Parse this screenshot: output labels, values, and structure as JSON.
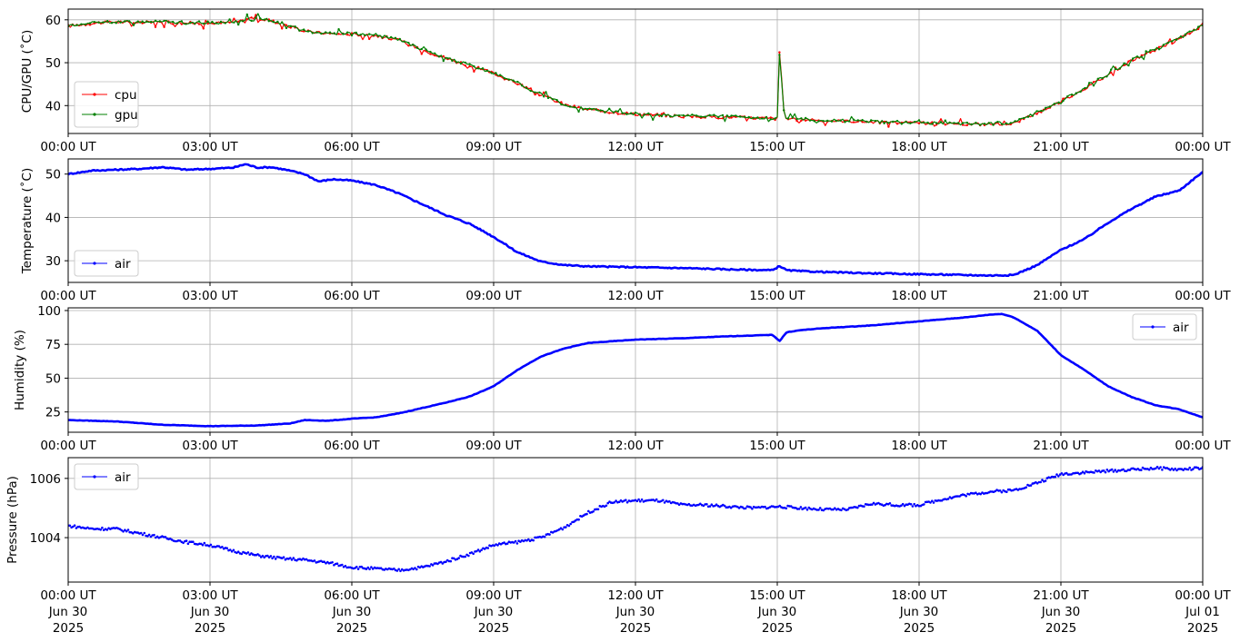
{
  "figure": {
    "x_tick_labels": [
      "00:00 UT",
      "03:00 UT",
      "06:00 UT",
      "09:00 UT",
      "12:00 UT",
      "15:00 UT",
      "18:00 UT",
      "21:00 UT",
      "00:00 UT"
    ],
    "bottom_date_lines": [
      [
        "Jun 30",
        "2025"
      ],
      [
        "Jun 30",
        "2025"
      ],
      [
        "Jun 30",
        "2025"
      ],
      [
        "Jun 30",
        "2025"
      ],
      [
        "Jun 30",
        "2025"
      ],
      [
        "Jun 30",
        "2025"
      ],
      [
        "Jun 30",
        "2025"
      ],
      [
        "Jun 30",
        "2025"
      ],
      [
        "Jul 01",
        "2025"
      ]
    ]
  },
  "chart_data": [
    {
      "type": "line",
      "ylabel": "CPU/GPU (˚C)",
      "xlim": [
        "2025-06-30 00:00",
        "2025-07-01 00:00"
      ],
      "ylim": [
        33.5,
        62.5
      ],
      "yticks": [
        40,
        50,
        60
      ],
      "grid": true,
      "legend": "lower-left",
      "x_hours": [
        0,
        0.5,
        1,
        1.5,
        2,
        2.5,
        3,
        3.5,
        3.9,
        4.2,
        4.6,
        5,
        5.5,
        6,
        6.5,
        7,
        7.5,
        8,
        8.5,
        9,
        9.5,
        10,
        10.5,
        11,
        12,
        13,
        14,
        14.9,
        15.0,
        15.05,
        15.1,
        15.15,
        15.25,
        15.5,
        16,
        16.5,
        17,
        17.5,
        18,
        18.5,
        19,
        19.5,
        20,
        20.5,
        21,
        21.5,
        22,
        22.5,
        23,
        23.5,
        24
      ],
      "series": [
        {
          "name": "cpu",
          "color": "#ff0000",
          "values": [
            58.5,
            59.2,
            59.5,
            59.3,
            59.5,
            59.2,
            59.2,
            59.4,
            60.5,
            60.0,
            58.8,
            57.3,
            56.8,
            56.6,
            56.4,
            55.2,
            53.0,
            51.0,
            49.3,
            47.5,
            45.2,
            42.5,
            40.2,
            39.0,
            38.0,
            37.5,
            37.3,
            37.0,
            37.0,
            53.5,
            45.0,
            37.2,
            36.8,
            36.7,
            36.5,
            36.4,
            36.2,
            36.0,
            35.9,
            35.8,
            35.7,
            35.7,
            35.9,
            38.3,
            41.0,
            44.0,
            47.2,
            50.5,
            53.0,
            55.5,
            58.8
          ]
        },
        {
          "name": "gpu",
          "color": "#008000",
          "values": [
            58.7,
            59.3,
            59.6,
            59.4,
            59.6,
            59.3,
            59.3,
            59.5,
            60.4,
            60.0,
            58.9,
            57.4,
            56.9,
            56.7,
            56.5,
            55.3,
            53.1,
            51.1,
            49.4,
            47.6,
            45.3,
            42.6,
            40.3,
            39.1,
            38.1,
            37.6,
            37.4,
            37.1,
            37.1,
            53.2,
            44.8,
            37.3,
            36.9,
            36.8,
            36.6,
            36.5,
            36.3,
            36.1,
            36.0,
            35.9,
            35.8,
            35.8,
            36.0,
            38.4,
            41.1,
            44.1,
            47.3,
            50.6,
            53.1,
            55.6,
            58.9
          ]
        }
      ]
    },
    {
      "type": "line",
      "ylabel": "Temperature (˚C)",
      "xlim": [
        "2025-06-30 00:00",
        "2025-07-01 00:00"
      ],
      "ylim": [
        25,
        53.5
      ],
      "yticks": [
        30,
        40,
        50
      ],
      "grid": true,
      "legend": "lower-left",
      "x_hours": [
        0,
        0.5,
        1,
        1.5,
        2,
        2.5,
        3,
        3.5,
        3.75,
        4,
        4.3,
        4.6,
        5,
        5.3,
        5.6,
        6,
        6.5,
        7,
        7.5,
        8,
        8.5,
        9,
        9.5,
        10,
        10.5,
        11,
        12,
        13,
        14,
        14.9,
        15.05,
        15.2,
        15.5,
        16,
        17,
        18,
        19,
        19.5,
        20,
        20.5,
        21,
        21.5,
        22,
        22.5,
        23,
        23.5,
        24
      ],
      "series": [
        {
          "name": "air",
          "color": "#0000ff",
          "values": [
            50.0,
            50.8,
            51.0,
            51.2,
            51.6,
            51.0,
            51.2,
            51.5,
            52.3,
            51.5,
            51.6,
            51.0,
            50.0,
            48.3,
            48.8,
            48.5,
            47.5,
            45.5,
            43.0,
            40.5,
            38.5,
            35.5,
            32.0,
            29.8,
            29.0,
            28.7,
            28.5,
            28.3,
            28.0,
            27.8,
            28.8,
            27.8,
            27.6,
            27.4,
            27.1,
            26.9,
            26.7,
            26.6,
            26.7,
            29.0,
            32.5,
            35.0,
            38.8,
            42.0,
            44.8,
            46.2,
            50.5
          ]
        }
      ]
    },
    {
      "type": "line",
      "ylabel": "Humidity (%)",
      "xlim": [
        "2025-06-30 00:00",
        "2025-07-01 00:00"
      ],
      "ylim": [
        10,
        102
      ],
      "yticks": [
        25,
        50,
        75,
        100
      ],
      "grid": true,
      "legend": "upper-right",
      "x_hours": [
        0,
        1,
        2,
        3,
        4,
        4.7,
        5,
        5.5,
        6,
        6.5,
        7,
        7.5,
        8,
        8.5,
        9,
        9.5,
        10,
        10.5,
        11,
        12,
        13,
        14,
        14.9,
        15.05,
        15.2,
        15.5,
        16,
        17,
        18,
        19,
        19.5,
        19.75,
        20,
        20.5,
        21,
        21.5,
        22,
        22.5,
        23,
        23.5,
        24
      ],
      "series": [
        {
          "name": "air",
          "color": "#0000ff",
          "values": [
            19.0,
            18.0,
            15.5,
            14.5,
            15.0,
            16.5,
            19.0,
            18.5,
            20.0,
            21.0,
            24.0,
            28.0,
            32.0,
            36.5,
            44.0,
            56.0,
            66.0,
            72.0,
            76.0,
            78.5,
            79.5,
            81.0,
            82.0,
            77.5,
            84.0,
            85.5,
            87.0,
            89.0,
            92.0,
            95.0,
            97.0,
            97.5,
            95.0,
            85.0,
            67.0,
            56.0,
            44.0,
            36.0,
            30.0,
            27.0,
            21.0
          ]
        }
      ]
    },
    {
      "type": "scatter",
      "ylabel": "Pressure (hPa)",
      "xlim": [
        "2025-06-30 00:00",
        "2025-07-01 00:00"
      ],
      "ylim": [
        1002.5,
        1006.7
      ],
      "yticks": [
        1004,
        1006
      ],
      "grid": true,
      "legend": "upper-left",
      "x_hours": [
        0,
        0.5,
        1,
        1.5,
        2,
        2.5,
        3,
        3.5,
        4,
        4.5,
        5,
        5.5,
        6,
        6.5,
        7,
        7.5,
        8,
        8.5,
        9,
        9.5,
        10,
        10.5,
        11,
        11.5,
        12,
        12.5,
        13,
        13.5,
        14,
        14.5,
        15,
        15.5,
        16,
        16.5,
        17,
        17.5,
        18,
        18.5,
        19,
        19.5,
        20,
        20.5,
        21,
        21.5,
        22,
        22.5,
        23,
        23.5,
        24
      ],
      "series": [
        {
          "name": "air",
          "color": "#0000ff",
          "values": [
            1004.4,
            1004.3,
            1004.3,
            1004.15,
            1004.0,
            1003.85,
            1003.75,
            1003.55,
            1003.4,
            1003.3,
            1003.25,
            1003.15,
            1003.0,
            1002.95,
            1002.9,
            1003.0,
            1003.2,
            1003.45,
            1003.75,
            1003.85,
            1004.0,
            1004.35,
            1004.85,
            1005.2,
            1005.25,
            1005.25,
            1005.1,
            1005.1,
            1005.05,
            1005.0,
            1005.05,
            1005.0,
            1004.95,
            1004.95,
            1005.15,
            1005.1,
            1005.1,
            1005.3,
            1005.45,
            1005.55,
            1005.6,
            1005.85,
            1006.15,
            1006.2,
            1006.25,
            1006.3,
            1006.35,
            1006.3,
            1006.35
          ]
        }
      ]
    }
  ]
}
